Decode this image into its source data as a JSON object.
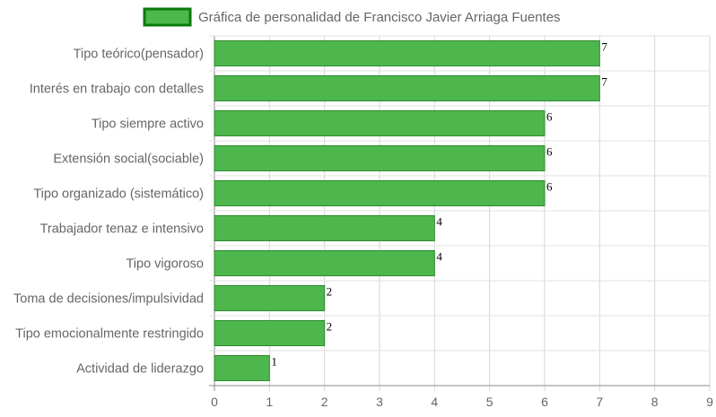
{
  "chart_data": {
    "type": "bar",
    "orientation": "horizontal",
    "legend": {
      "label": "Gráfica de personalidad de Francisco Javier Arriaga Fuentes",
      "position": "top"
    },
    "categories": [
      "Tipo teórico(pensador)",
      "Interés en trabajo con detalles",
      "Tipo siempre activo",
      "Extensión social(sociable)",
      "Tipo organizado (sistemático)",
      "Trabajador tenaz e intensivo",
      "Tipo vigoroso",
      "Toma de decisiones/impulsividad",
      "Tipo emocionalmente restringido",
      "Actividad de liderazgo"
    ],
    "series": [
      {
        "name": "Gráfica de personalidad de Francisco Javier Arriaga Fuentes",
        "values": [
          7,
          7,
          6,
          6,
          6,
          4,
          4,
          2,
          2,
          1
        ]
      }
    ],
    "xlim": [
      0,
      9
    ],
    "xticks": [
      "0",
      "1",
      "2",
      "3",
      "4",
      "5",
      "6",
      "7",
      "8",
      "9"
    ],
    "grid": true,
    "colors": {
      "bar_fill": "#4db64d",
      "bar_stroke": "#2e8b2e",
      "legend_fill": "#4db64d",
      "legend_stroke": "#0a7a0a"
    }
  }
}
